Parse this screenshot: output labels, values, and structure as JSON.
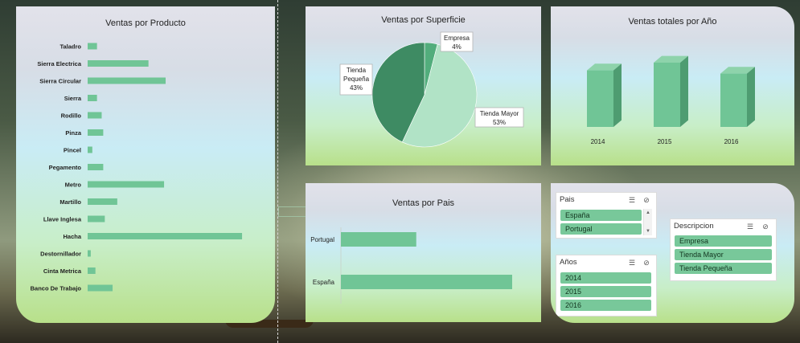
{
  "colors": {
    "bar": "#70c596",
    "pie_dark": "#3e8b63",
    "pie_mid": "#52ad7c",
    "pie_light": "#b1e3c6",
    "col_front": "#70c596",
    "col_top": "#8ed3ab",
    "col_side": "#4e9c71"
  },
  "chart_data": [
    {
      "type": "bar",
      "title": "Ventas por Producto",
      "orientation": "horizontal",
      "categories": [
        "Taladro",
        "Sierra Electrica",
        "Sierra Circular",
        "Sierra",
        "Rodillo",
        "Pinza",
        "Pincel",
        "Pegamento",
        "Metro",
        "Martillo",
        "Llave Inglesa",
        "Hacha",
        "Destornillador",
        "Cinta Metrica",
        "Banco De Trabajo"
      ],
      "values": [
        6,
        39,
        50,
        6,
        9,
        10,
        3,
        10,
        49,
        19,
        11,
        99,
        2,
        5,
        16
      ],
      "xlim": [
        0,
        100
      ],
      "grid": false
    },
    {
      "type": "pie",
      "title": "Ventas por Superficie",
      "labels": [
        "Empresa",
        "Tienda Mayor",
        "Tienda Pequeña"
      ],
      "values": [
        4,
        53,
        43
      ],
      "data_labels": [
        "4%",
        "53%",
        "43%"
      ]
    },
    {
      "type": "bar",
      "title": "Ventas totales por Año",
      "categories": [
        "2014",
        "2015",
        "2016"
      ],
      "values": [
        88,
        100,
        83
      ],
      "ylim": [
        0,
        100
      ],
      "style": "3d-column"
    },
    {
      "type": "bar",
      "title": "Ventas por Pais",
      "orientation": "horizontal",
      "categories": [
        "Portugal",
        "España"
      ],
      "values": [
        44,
        100
      ],
      "xlim": [
        0,
        100
      ]
    }
  ],
  "slicers": {
    "pais": {
      "header": "Pais",
      "items": [
        "España",
        "Portugal"
      ]
    },
    "anios": {
      "header": "Años",
      "items": [
        "2014",
        "2015",
        "2016"
      ]
    },
    "descripcion": {
      "header": "Descripcion",
      "items": [
        "Empresa",
        "Tienda Mayor",
        "Tienda Pequeña"
      ]
    }
  }
}
